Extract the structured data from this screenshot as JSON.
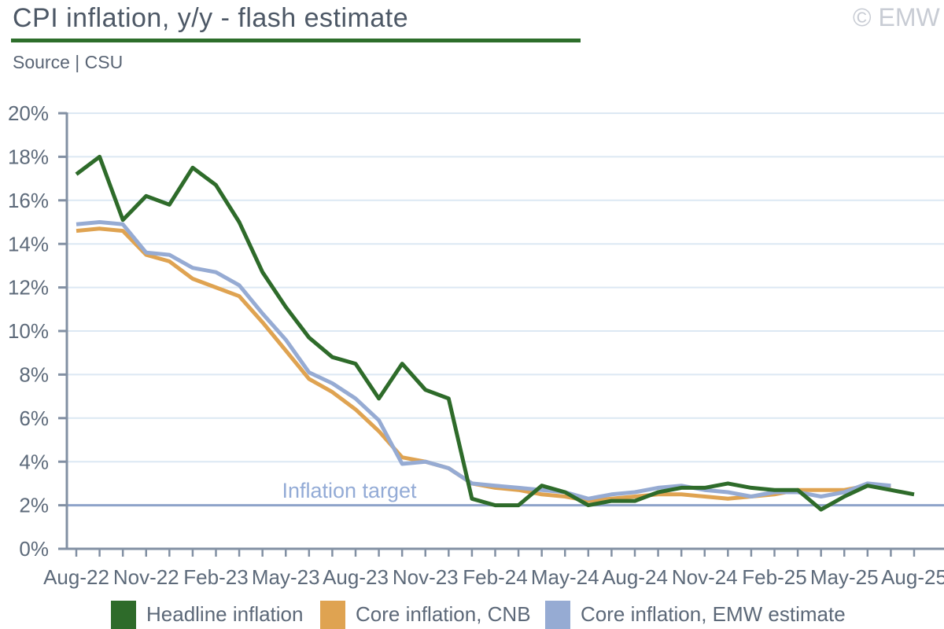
{
  "header": {
    "title": "CPI inflation, y/y - flash estimate",
    "source": "Source | CSU",
    "copyright": "© EMW"
  },
  "colors": {
    "title_text": "#4d5866",
    "rule": "#2d6e2b",
    "axis": "#8290a3",
    "grid": "#dce8f3",
    "axis_label": "#5d6a7a",
    "target_line": "#8ea3c9",
    "target_text": "#93abd6",
    "copyright_text": "#c8ccd4",
    "headline": "#2e6b2a",
    "core_cnb": "#dfa351",
    "core_emw": "#96abd3"
  },
  "chart_data": {
    "type": "line",
    "x": [
      "Aug-22",
      "Sep-22",
      "Oct-22",
      "Nov-22",
      "Dec-22",
      "Jan-23",
      "Feb-23",
      "Mar-23",
      "Apr-23",
      "May-23",
      "Jun-23",
      "Jul-23",
      "Aug-23",
      "Sep-23",
      "Oct-23",
      "Nov-23",
      "Dec-23",
      "Jan-24",
      "Feb-24",
      "Mar-24",
      "Apr-24",
      "May-24",
      "Jun-24",
      "Jul-24",
      "Aug-24",
      "Sep-24",
      "Oct-24",
      "Nov-24",
      "Dec-24",
      "Jan-25",
      "Feb-25",
      "Mar-25",
      "Apr-25",
      "May-25",
      "Jun-25",
      "Jul-25",
      "Aug-25"
    ],
    "tick_label_every": 3,
    "x_tick_labels": [
      "Aug-22",
      "Nov-22",
      "Feb-23",
      "May-23",
      "Aug-23",
      "Nov-23",
      "Feb-24",
      "May-24",
      "Aug-24",
      "Nov-24",
      "Feb-25",
      "May-25",
      "Aug-25"
    ],
    "series": [
      {
        "name": "Core inflation, CNB",
        "color": "#dfa351",
        "values": [
          14.6,
          14.7,
          14.6,
          13.5,
          13.2,
          12.4,
          12.0,
          11.6,
          10.4,
          9.1,
          7.8,
          7.2,
          6.4,
          5.4,
          4.2,
          4.0,
          3.7,
          3.0,
          2.8,
          2.7,
          2.5,
          2.4,
          2.2,
          2.3,
          2.4,
          2.5,
          2.5,
          2.4,
          2.3,
          2.4,
          2.5,
          2.7,
          2.7,
          2.7,
          2.9,
          2.8,
          null
        ]
      },
      {
        "name": "Core inflation, EMW estimate",
        "color": "#96abd3",
        "values": [
          14.9,
          15.0,
          14.9,
          13.6,
          13.5,
          12.9,
          12.7,
          12.1,
          10.8,
          9.6,
          8.1,
          7.6,
          6.9,
          5.9,
          3.9,
          4.0,
          3.7,
          3.0,
          2.9,
          2.8,
          2.7,
          2.6,
          2.3,
          2.5,
          2.6,
          2.8,
          2.9,
          2.7,
          2.6,
          2.4,
          2.6,
          2.6,
          2.4,
          2.6,
          3.0,
          2.9,
          null
        ]
      },
      {
        "name": "Headline inflation",
        "color": "#2e6b2a",
        "values": [
          17.2,
          18.0,
          15.1,
          16.2,
          15.8,
          17.5,
          16.7,
          15.0,
          12.7,
          11.1,
          9.7,
          8.8,
          8.5,
          6.9,
          8.5,
          7.3,
          6.9,
          2.3,
          2.0,
          2.0,
          2.9,
          2.6,
          2.0,
          2.2,
          2.2,
          2.6,
          2.8,
          2.8,
          3.0,
          2.8,
          2.7,
          2.7,
          1.8,
          2.4,
          2.9,
          2.7,
          2.5
        ]
      }
    ],
    "ylim": [
      0,
      20
    ],
    "y_tick_step": 2,
    "y_tick_suffix": "%",
    "grid": true,
    "legend_position": "bottom",
    "annotation": {
      "text": "Inflation target",
      "value": 2
    }
  },
  "legend_order": [
    "Headline inflation",
    "Core inflation, CNB",
    "Core inflation, EMW estimate"
  ]
}
